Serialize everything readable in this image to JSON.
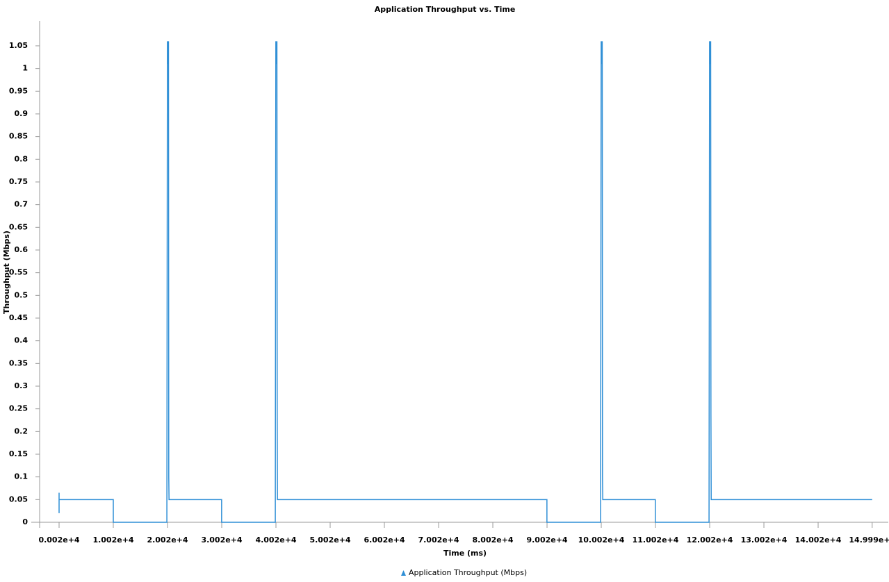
{
  "chart_data": {
    "type": "line",
    "title": "Application Throughput vs. Time",
    "x_label": "Time (ms)",
    "y_label": "Throughput (Mbps)",
    "xlim": [
      20,
      149990
    ],
    "xticks": [
      {
        "value": 20,
        "label": "0.002e+4"
      },
      {
        "value": 10020,
        "label": "1.002e+4"
      },
      {
        "value": 20020,
        "label": "2.002e+4"
      },
      {
        "value": 30020,
        "label": "3.002e+4"
      },
      {
        "value": 40020,
        "label": "4.002e+4"
      },
      {
        "value": 50020,
        "label": "5.002e+4"
      },
      {
        "value": 60020,
        "label": "6.002e+4"
      },
      {
        "value": 70020,
        "label": "7.002e+4"
      },
      {
        "value": 80020,
        "label": "8.002e+4"
      },
      {
        "value": 90020,
        "label": "9.002e+4"
      },
      {
        "value": 100020,
        "label": "10.002e+4"
      },
      {
        "value": 110020,
        "label": "11.002e+4"
      },
      {
        "value": 120020,
        "label": "12.002e+4"
      },
      {
        "value": 130020,
        "label": "13.002e+4"
      },
      {
        "value": 140020,
        "label": "14.002e+4"
      },
      {
        "value": 149990,
        "label": "14.999e+4"
      }
    ],
    "ylim": [
      0,
      1.1
    ],
    "yticks": [
      0,
      0.05,
      0.1,
      0.15,
      0.2,
      0.25,
      0.3,
      0.35,
      0.4,
      0.45,
      0.5,
      0.55,
      0.6,
      0.65,
      0.7,
      0.75,
      0.8,
      0.85,
      0.9,
      0.95,
      1,
      1.05
    ],
    "series": [
      {
        "name": "Application Throughput (Mbps)",
        "color": "#2f8fd6",
        "x": [
          20,
          20,
          20,
          10020,
          10020,
          19900,
          20000,
          20050,
          20100,
          20150,
          20200,
          20250,
          20300,
          30000,
          30000,
          39900,
          40000,
          40050,
          40100,
          40150,
          40200,
          40250,
          40300,
          90000,
          90000,
          99900,
          100000,
          100050,
          100100,
          100150,
          100200,
          100250,
          100300,
          110000,
          110000,
          119900,
          120000,
          120050,
          120100,
          120150,
          120200,
          120250,
          120300,
          149990
        ],
        "values": [
          0.065,
          0.02,
          0.05,
          0.05,
          0,
          0,
          1.06,
          1.01,
          1.06,
          1.01,
          1.06,
          0.1,
          0.05,
          0.05,
          0,
          0,
          1.06,
          1.01,
          1.06,
          1.01,
          1.06,
          0.24,
          0.05,
          0.05,
          0,
          0,
          1.06,
          1.01,
          1.06,
          1.01,
          1.06,
          0.1,
          0.05,
          0.05,
          0,
          0,
          1.06,
          1.01,
          1.06,
          1.01,
          1.06,
          0.24,
          0.05,
          0.05
        ]
      }
    ]
  }
}
